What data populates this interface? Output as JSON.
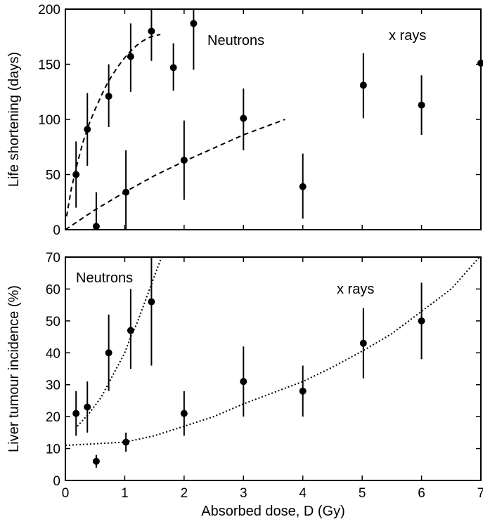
{
  "chart_data": [
    {
      "type": "scatter",
      "ylabel": "Life shortening (days)",
      "xlim": [
        0,
        7
      ],
      "ylim": [
        0,
        200
      ],
      "yticks": [
        0,
        50,
        100,
        150,
        200
      ],
      "annotations": [
        "Neutrons",
        "x rays"
      ],
      "series": [
        {
          "name": "Neutrons",
          "points": [
            {
              "x": 0.18,
              "y": 50,
              "lo": 20,
              "hi": 80
            },
            {
              "x": 0.37,
              "y": 91,
              "lo": 58,
              "hi": 124
            },
            {
              "x": 0.73,
              "y": 121,
              "lo": 93,
              "hi": 150
            },
            {
              "x": 1.1,
              "y": 157,
              "lo": 125,
              "hi": 187
            },
            {
              "x": 1.45,
              "y": 180,
              "lo": 153,
              "hi": 207
            },
            {
              "x": 1.82,
              "y": 147,
              "lo": 126,
              "hi": 169
            },
            {
              "x": 2.16,
              "y": 187,
              "lo": 145,
              "hi": 210
            }
          ],
          "fit": {
            "x": [
              0.02,
              0.1,
              0.2,
              0.3,
              0.4,
              0.5,
              0.6,
              0.7,
              0.8,
              0.9,
              1.0,
              1.1,
              1.2,
              1.3,
              1.4,
              1.5,
              1.6
            ],
            "y": [
              12,
              37,
              60,
              80,
              96,
              109,
              121,
              132,
              141,
              149,
              156,
              162,
              167,
              171,
              174,
              176,
              177
            ]
          }
        },
        {
          "name": "x rays",
          "points": [
            {
              "x": 0.52,
              "y": 3,
              "lo": 0,
              "hi": 34
            },
            {
              "x": 1.02,
              "y": 34,
              "lo": 0,
              "hi": 72
            },
            {
              "x": 2.0,
              "y": 63,
              "lo": 27,
              "hi": 99
            },
            {
              "x": 3.0,
              "y": 101,
              "lo": 72,
              "hi": 128
            },
            {
              "x": 4.0,
              "y": 39,
              "lo": 10,
              "hi": 69
            },
            {
              "x": 5.02,
              "y": 131,
              "lo": 101,
              "hi": 160
            },
            {
              "x": 6.0,
              "y": 113,
              "lo": 86,
              "hi": 140
            },
            {
              "x": 7.0,
              "y": 151,
              "lo": 151,
              "hi": 151
            }
          ],
          "fit": {
            "x": [
              0,
              0.5,
              1.0,
              1.5,
              2.0,
              2.5,
              3.0,
              3.5,
              3.7
            ],
            "y": [
              0,
              18,
              34,
              49,
              62,
              74,
              86,
              96,
              100
            ]
          }
        }
      ]
    },
    {
      "type": "scatter",
      "xlabel": "Absorbed dose, D (Gy)",
      "ylabel": "Liver tumour incidence (%)",
      "xlim": [
        0,
        7
      ],
      "ylim": [
        0,
        70
      ],
      "xticks": [
        0,
        1,
        2,
        3,
        4,
        5,
        6,
        7
      ],
      "yticks": [
        0,
        10,
        20,
        30,
        40,
        50,
        60,
        70
      ],
      "annotations": [
        "Neutrons",
        "x rays"
      ],
      "series": [
        {
          "name": "Neutrons",
          "points": [
            {
              "x": 0.18,
              "y": 21,
              "lo": 14,
              "hi": 28
            },
            {
              "x": 0.37,
              "y": 23,
              "lo": 15,
              "hi": 31
            },
            {
              "x": 0.73,
              "y": 40,
              "lo": 28,
              "hi": 52
            },
            {
              "x": 1.1,
              "y": 47,
              "lo": 35,
              "hi": 60
            },
            {
              "x": 1.45,
              "y": 56,
              "lo": 36,
              "hi": 77
            }
          ],
          "fit": {
            "x": [
              0.2,
              0.4,
              0.6,
              0.8,
              1.0,
              1.1,
              1.2,
              1.3,
              1.4,
              1.5,
              1.6,
              1.7
            ],
            "y": [
              17,
              21,
              26,
              33,
              40,
              45,
              49,
              54,
              59,
              64,
              69,
              73
            ]
          }
        },
        {
          "name": "x rays",
          "points": [
            {
              "x": 0.52,
              "y": 6,
              "lo": 4,
              "hi": 8
            },
            {
              "x": 1.02,
              "y": 12,
              "lo": 9,
              "hi": 15
            },
            {
              "x": 2.0,
              "y": 21,
              "lo": 14,
              "hi": 28
            },
            {
              "x": 3.0,
              "y": 31,
              "lo": 20,
              "hi": 42
            },
            {
              "x": 4.0,
              "y": 28,
              "lo": 20,
              "hi": 36
            },
            {
              "x": 5.02,
              "y": 43,
              "lo": 32,
              "hi": 54
            },
            {
              "x": 6.0,
              "y": 50,
              "lo": 38,
              "hi": 62
            }
          ],
          "fit": {
            "x": [
              0,
              0.5,
              1.0,
              1.5,
              2.0,
              2.5,
              3.0,
              3.5,
              4.0,
              4.5,
              5.0,
              5.5,
              6.0,
              6.5,
              7.0
            ],
            "y": [
              11,
              11.5,
              12,
              14,
              17,
              20,
              24,
              27.5,
              31,
              35.5,
              40.5,
              46,
              53,
              60,
              70.5
            ]
          }
        }
      ]
    }
  ]
}
